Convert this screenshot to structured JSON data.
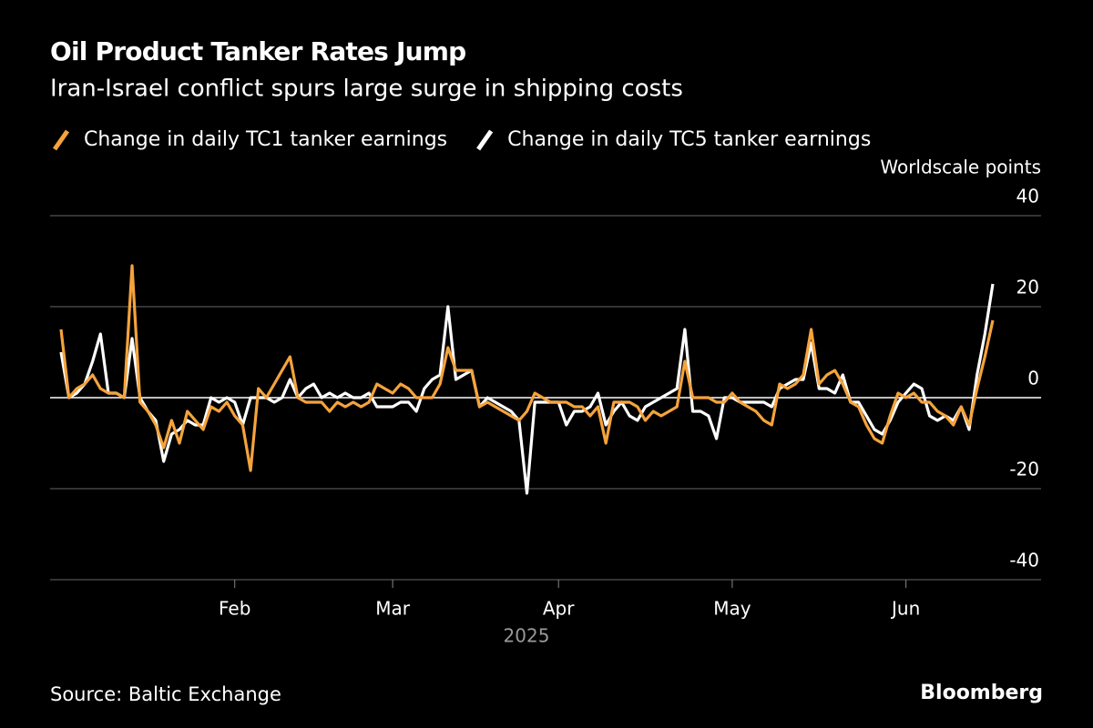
{
  "chart_data": {
    "type": "line",
    "title": "Oil Product Tanker Rates Jump",
    "subtitle": "Iran-Israel conflict spurs large surge in shipping costs",
    "y_label": "Worldscale points",
    "x_label": "2025",
    "source": "Source: Baltic Exchange",
    "brand": "Bloomberg",
    "categories": [
      null,
      null,
      null,
      null,
      null,
      null,
      null,
      null,
      null,
      null,
      null,
      null,
      null,
      null,
      null,
      null,
      null,
      null,
      null,
      null,
      null,
      null,
      "Feb",
      null,
      null,
      null,
      null,
      null,
      null,
      null,
      null,
      null,
      null,
      null,
      null,
      null,
      null,
      null,
      null,
      null,
      null,
      null,
      "Mar",
      null,
      null,
      null,
      null,
      null,
      null,
      null,
      null,
      null,
      null,
      null,
      null,
      null,
      null,
      null,
      null,
      null,
      null,
      null,
      null,
      "Apr",
      null,
      null,
      null,
      null,
      null,
      null,
      null,
      null,
      null,
      null,
      null,
      null,
      null,
      null,
      null,
      null,
      null,
      null,
      null,
      null,
      null,
      "May",
      null,
      null,
      null,
      null,
      null,
      null,
      null,
      null,
      null,
      null,
      null,
      null,
      null,
      null,
      null,
      null,
      null,
      null,
      null,
      null,
      null,
      "Jun",
      null,
      null,
      null,
      null,
      null,
      null,
      null,
      null,
      null,
      null,
      null
    ],
    "series": [
      {
        "name": "Change in daily TC1 tanker earnings",
        "color": "#f5a33c",
        "values": [
          15,
          0,
          2,
          3,
          5,
          2,
          1,
          1,
          0,
          29,
          -1,
          -3,
          -6,
          -11,
          -5,
          -10,
          -3,
          -5,
          -7,
          -2,
          -3,
          -1,
          -4,
          -6,
          -16,
          2,
          0,
          3,
          6,
          9,
          0,
          -1,
          -1,
          -1,
          -3,
          -1,
          -2,
          -1,
          -2,
          -1,
          3,
          2,
          1,
          3,
          2,
          0,
          0,
          0,
          3,
          11,
          6,
          6,
          6,
          -2,
          -1,
          -2,
          -3,
          -4,
          -5,
          -3,
          1,
          0,
          -1,
          -1,
          -1,
          -2,
          -2,
          -4,
          -2,
          -10,
          -1,
          -1,
          -1,
          -2,
          -5,
          -3,
          -4,
          -3,
          -2,
          8,
          0,
          0,
          0,
          -1,
          -1,
          1,
          -1,
          -2,
          -3,
          -5,
          -6,
          3,
          2,
          3,
          5,
          15,
          3,
          5,
          6,
          3,
          -1,
          -2,
          -6,
          -9,
          -10,
          -4,
          1,
          0,
          1,
          -1,
          -1,
          -3,
          -4,
          -6,
          -2,
          -6,
          2,
          9,
          17
        ]
      },
      {
        "name": "Change in daily TC5 tanker earnings",
        "color": "#ffffff",
        "values": [
          10,
          0,
          1,
          3,
          8,
          14,
          1,
          1,
          0,
          13,
          0,
          -3,
          -5,
          -14,
          -8,
          -7,
          -5,
          -6,
          -6,
          0,
          -1,
          0,
          -1,
          -6,
          0,
          0,
          0,
          -1,
          0,
          4,
          0,
          2,
          3,
          0,
          1,
          0,
          1,
          0,
          0,
          1,
          -2,
          -2,
          -2,
          -1,
          -1,
          -3,
          2,
          4,
          5,
          20,
          4,
          5,
          6,
          -2,
          0,
          -1,
          -2,
          -3,
          -5,
          -21,
          -1,
          -1,
          -1,
          -1,
          -6,
          -3,
          -3,
          -2,
          1,
          -6,
          -3,
          -1,
          -4,
          -5,
          -2,
          -1,
          0,
          1,
          2,
          15,
          -3,
          -3,
          -4,
          -9,
          0,
          0,
          -1,
          -1,
          -1,
          -1,
          -2,
          2,
          3,
          4,
          4,
          12,
          2,
          2,
          1,
          5,
          -1,
          -1,
          -4,
          -7,
          -8,
          -5,
          -1,
          1,
          3,
          2,
          -4,
          -5,
          -4,
          -5,
          -2,
          -7,
          5,
          14,
          25
        ]
      }
    ],
    "ylim": [
      -40,
      40
    ],
    "yticks": [
      -40,
      -20,
      0,
      20,
      40
    ],
    "grid": true
  }
}
